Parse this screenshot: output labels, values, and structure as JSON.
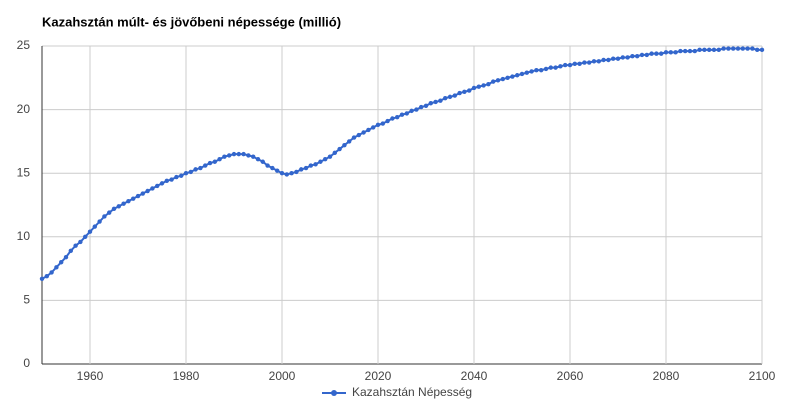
{
  "chart_data": {
    "type": "line",
    "title": "Kazahsztán múlt- és jövőbeni népessége (millió)",
    "x": [
      1950,
      1951,
      1952,
      1953,
      1954,
      1955,
      1956,
      1957,
      1958,
      1959,
      1960,
      1961,
      1962,
      1963,
      1964,
      1965,
      1966,
      1967,
      1968,
      1969,
      1970,
      1971,
      1972,
      1973,
      1974,
      1975,
      1976,
      1977,
      1978,
      1979,
      1980,
      1981,
      1982,
      1983,
      1984,
      1985,
      1986,
      1987,
      1988,
      1989,
      1990,
      1991,
      1992,
      1993,
      1994,
      1995,
      1996,
      1997,
      1998,
      1999,
      2000,
      2001,
      2002,
      2003,
      2004,
      2005,
      2006,
      2007,
      2008,
      2009,
      2010,
      2011,
      2012,
      2013,
      2014,
      2015,
      2016,
      2017,
      2018,
      2019,
      2020,
      2021,
      2022,
      2023,
      2024,
      2025,
      2026,
      2027,
      2028,
      2029,
      2030,
      2031,
      2032,
      2033,
      2034,
      2035,
      2036,
      2037,
      2038,
      2039,
      2040,
      2041,
      2042,
      2043,
      2044,
      2045,
      2046,
      2047,
      2048,
      2049,
      2050,
      2051,
      2052,
      2053,
      2054,
      2055,
      2056,
      2057,
      2058,
      2059,
      2060,
      2061,
      2062,
      2063,
      2064,
      2065,
      2066,
      2067,
      2068,
      2069,
      2070,
      2071,
      2072,
      2073,
      2074,
      2075,
      2076,
      2077,
      2078,
      2079,
      2080,
      2081,
      2082,
      2083,
      2084,
      2085,
      2086,
      2087,
      2088,
      2089,
      2090,
      2091,
      2092,
      2093,
      2094,
      2095,
      2096,
      2097,
      2098,
      2099,
      2100
    ],
    "series": [
      {
        "name": "Kazahsztán Népesség",
        "color": "#3366cc",
        "values": [
          6.7,
          6.9,
          7.2,
          7.6,
          8.0,
          8.4,
          8.9,
          9.3,
          9.6,
          10.0,
          10.4,
          10.8,
          11.2,
          11.6,
          11.9,
          12.2,
          12.4,
          12.6,
          12.8,
          13.0,
          13.2,
          13.4,
          13.6,
          13.8,
          14.0,
          14.2,
          14.4,
          14.5,
          14.7,
          14.8,
          15.0,
          15.1,
          15.3,
          15.4,
          15.6,
          15.8,
          15.9,
          16.1,
          16.3,
          16.4,
          16.5,
          16.5,
          16.5,
          16.4,
          16.3,
          16.1,
          15.9,
          15.6,
          15.4,
          15.2,
          15.0,
          14.9,
          15.0,
          15.1,
          15.3,
          15.4,
          15.6,
          15.7,
          15.9,
          16.1,
          16.3,
          16.6,
          16.9,
          17.2,
          17.5,
          17.8,
          18.0,
          18.2,
          18.4,
          18.6,
          18.8,
          18.9,
          19.1,
          19.3,
          19.4,
          19.6,
          19.7,
          19.9,
          20.0,
          20.2,
          20.3,
          20.5,
          20.6,
          20.7,
          20.9,
          21.0,
          21.1,
          21.3,
          21.4,
          21.5,
          21.7,
          21.8,
          21.9,
          22.0,
          22.2,
          22.3,
          22.4,
          22.5,
          22.6,
          22.7,
          22.8,
          22.9,
          23.0,
          23.1,
          23.1,
          23.2,
          23.3,
          23.3,
          23.4,
          23.5,
          23.5,
          23.6,
          23.6,
          23.7,
          23.7,
          23.8,
          23.8,
          23.9,
          23.9,
          24.0,
          24.0,
          24.1,
          24.1,
          24.2,
          24.2,
          24.3,
          24.3,
          24.4,
          24.4,
          24.4,
          24.5,
          24.5,
          24.5,
          24.6,
          24.6,
          24.6,
          24.6,
          24.7,
          24.7,
          24.7,
          24.7,
          24.7,
          24.8,
          24.8,
          24.8,
          24.8,
          24.8,
          24.8,
          24.8,
          24.7,
          24.7
        ]
      }
    ],
    "xlim": [
      1950,
      2100
    ],
    "xticks": [
      1960,
      1980,
      2000,
      2020,
      2040,
      2060,
      2080,
      2100
    ],
    "ylim": [
      0,
      25
    ],
    "yticks": [
      0,
      5,
      10,
      15,
      20,
      25
    ],
    "grid": true,
    "legend": "bottom"
  }
}
